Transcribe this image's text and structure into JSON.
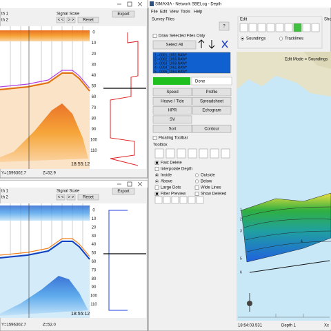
{
  "echogram_top": {
    "labels": [
      "th 1",
      "th 2"
    ],
    "signal_scale": "Signal Scale",
    "buttons": [
      "< <",
      "> >",
      "Reset"
    ],
    "export": "Export",
    "depth_scale": [
      0,
      10,
      20,
      30,
      40,
      50,
      60,
      70,
      80,
      90,
      100,
      110
    ],
    "time": "18:55:12",
    "status": [
      "Y=1596302.7",
      "Z=52.9"
    ]
  },
  "echogram_bottom": {
    "labels": [
      "th 1",
      "th 2"
    ],
    "signal_scale": "Signal Scale",
    "buttons": [
      "< <",
      "> >",
      "Reset"
    ],
    "export": "Export",
    "depth_scale": [
      0,
      10,
      20,
      30,
      40,
      50,
      60,
      70,
      80,
      90,
      100,
      110
    ],
    "time": "18:55:12",
    "status": [
      "Y=1596302.7",
      "Z=52.0"
    ]
  },
  "main_window": {
    "title": "SIMAXIA - Network SBELog - Depth",
    "menu": [
      "File",
      "Edit",
      "View",
      "Tools",
      "Help"
    ],
    "survey_files": {
      "heading": "Survey Files",
      "help": "?",
      "draw_selected": "Draw Selected Files Only",
      "select_all": "Select All",
      "files": [
        "1 - 0001_1051.RAW*",
        "2 - 0002_1056.RAW*",
        "3 - 0003_1059.RAW*",
        "4 - 0004_1061.RAW*",
        "5 - 0005_1064.RAW*"
      ],
      "progress": "Done",
      "buttons": [
        [
          "Speed",
          "Profile"
        ],
        [
          "Heave / Tide",
          "Spreadsheet"
        ],
        [
          "HPR",
          "Echogram"
        ],
        [
          "SV",
          null
        ],
        [
          "Sort",
          "Contour"
        ]
      ],
      "floating_toolbar": "Floating Toolbar"
    },
    "toolbox": {
      "heading": "Toolbox",
      "options": [
        [
          "Fast Delete",
          null
        ],
        [
          "Interpolate Depth",
          null
        ],
        [
          "Inside",
          "Outside"
        ],
        [
          "Above",
          "Below"
        ],
        [
          "Large Dots",
          "Wide Lines"
        ],
        [
          "Filter Preview",
          "Show Deleted"
        ]
      ]
    },
    "edit": {
      "heading": "Edit",
      "modes": [
        "Soundings",
        "Tracklines"
      ],
      "show": "Show"
    },
    "view": {
      "mode": "Edit Mode = Soundings",
      "profile_labels": [
        "1",
        "2",
        "3",
        "4",
        "5",
        "6"
      ]
    },
    "status": [
      "18:54:03.531",
      "Depth 1",
      "Xc"
    ]
  }
}
